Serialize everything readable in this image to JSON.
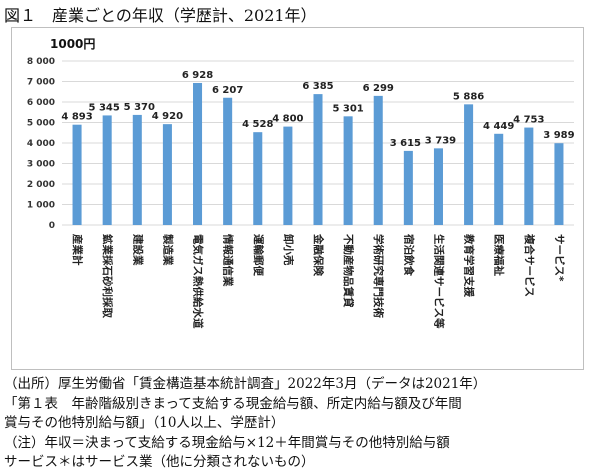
{
  "figure_title": "図１　産業ごとの年収（学歴計、2021年）",
  "chart_data": {
    "type": "bar",
    "title": "",
    "unit_label": "1000円",
    "xlabel": "",
    "ylabel": "1000円",
    "ylim": [
      0,
      8000
    ],
    "y_ticks": [
      0,
      1000,
      2000,
      3000,
      4000,
      5000,
      6000,
      7000,
      8000
    ],
    "y_tick_labels": [
      "0",
      "1 000",
      "2 000",
      "3 000",
      "4 000",
      "5 000",
      "6 000",
      "7 000",
      "8 000"
    ],
    "grid": true,
    "bar_color": "#5b9bd5",
    "categories": [
      "産業計",
      "鉱業採石砂利採取",
      "建設業",
      "製造業",
      "電気ガス熱供給水道",
      "情報通信業",
      "運輸郵便",
      "卸小売",
      "金融保険",
      "不動産物品賃貸",
      "学術研究専門技術",
      "宿泊飲食",
      "生活関連サービス等",
      "教育学習支援",
      "医療福祉",
      "複合サービス",
      "サービス*"
    ],
    "values": [
      4893,
      5345,
      5370,
      4920,
      6928,
      6207,
      4528,
      4800,
      6385,
      5301,
      6299,
      3615,
      3739,
      5886,
      4449,
      4753,
      3989
    ],
    "value_labels": [
      "4 893",
      "5 345",
      "5 370",
      "4 920",
      "6 928",
      "6 207",
      "4 528",
      "4 800",
      "6 385",
      "5 301",
      "6 299",
      "3 615",
      "3 739",
      "5 886",
      "4 449",
      "4 753",
      "3 989"
    ]
  },
  "notes": [
    "（出所）厚生労働省「賃金構造基本統計調査」2022年3月（データは2021年）",
    "「第１表　年齢階級別きまって支給する現金給与額、所定内給与額及び年間",
    "賞与その他特別給与額」（10人以上、学歴計）",
    "（注）年収＝決まって支給する現金給与×12＋年間賞与その他特別給与額",
    "サービス＊はサービス業（他に分類されないもの）"
  ]
}
